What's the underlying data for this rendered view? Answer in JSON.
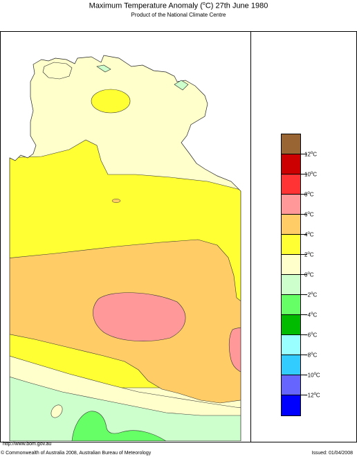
{
  "header": {
    "title_prefix": "Maximum Temperature Anomaly (",
    "title_deg": "o",
    "title_suffix": "C)  27th June 1980",
    "subtitle": "Product of the National Climate Centre"
  },
  "legend": {
    "colors": [
      "#996633",
      "#cc0000",
      "#ff3333",
      "#ff9999",
      "#ffcc66",
      "#ffff33",
      "#ffffcc",
      "#ccffcc",
      "#66ff66",
      "#00bb00",
      "#99ffff",
      "#33ccff",
      "#6666ff",
      "#0000ff"
    ],
    "labels": [
      {
        "value": "12",
        "unit": "C"
      },
      {
        "value": "10",
        "unit": "C"
      },
      {
        "value": "8",
        "unit": "C"
      },
      {
        "value": "6",
        "unit": "C"
      },
      {
        "value": "4",
        "unit": "C"
      },
      {
        "value": "2",
        "unit": "C"
      },
      {
        "value": "0",
        "unit": "C"
      },
      {
        "value": "−2",
        "unit": "C"
      },
      {
        "value": "−4",
        "unit": "C"
      },
      {
        "value": "−6",
        "unit": "C"
      },
      {
        "value": "−8",
        "unit": "C"
      },
      {
        "value": "−10",
        "unit": "C"
      },
      {
        "value": "−12",
        "unit": "C"
      }
    ],
    "degree_symbol": "o"
  },
  "map_colors": {
    "ocean": "#ffffff",
    "zero_to_two": "#ffffcc",
    "two_to_four": "#ffff33",
    "four_to_six": "#ffcc66",
    "six_to_eight": "#ff9999",
    "minus_two_to_zero": "#ccffcc",
    "minus_four_to_minus_two": "#66ff66"
  },
  "footer": {
    "url": "http://www.bom.gov.au",
    "copyright": "© Commonwealth of Australia 2008, Australian Bureau of Meteorology",
    "issued": "Issued: 01/04/2008"
  }
}
